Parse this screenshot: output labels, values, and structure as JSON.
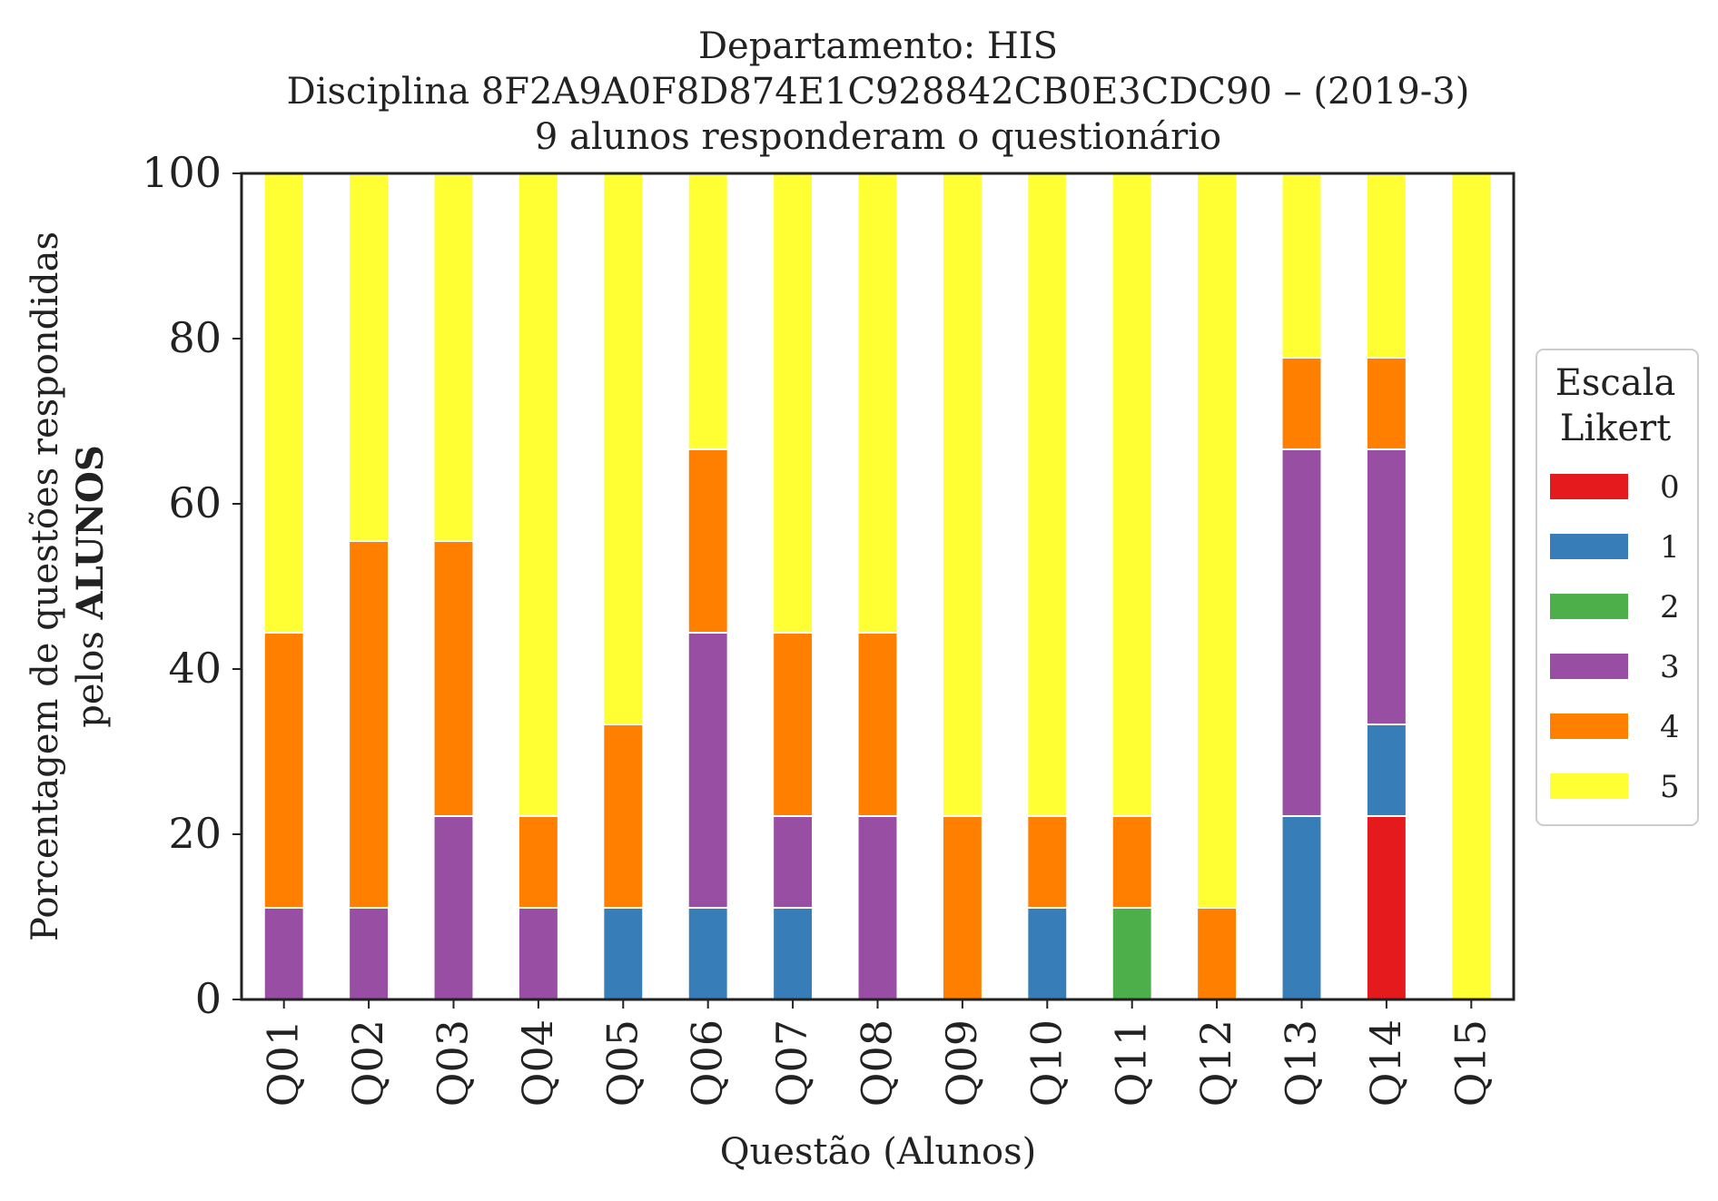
{
  "chart_data": {
    "type": "bar",
    "stacked": true,
    "title_lines": [
      "Departamento: HIS",
      "Disciplina 8F2A9A0F8D874E1C928842CB0E3CDC90 – (2019-3)",
      "9 alunos responderam o questionário"
    ],
    "xlabel": "Questão (Alunos)",
    "ylabel_line1": "Porcentagem de questões respondidas",
    "ylabel_line2_prefix": "pelos ",
    "ylabel_line2_bold": "ALUNOS",
    "ylim": [
      0,
      100
    ],
    "yticks": [
      "0",
      "20",
      "40",
      "60",
      "80",
      "100"
    ],
    "grid": false,
    "legend": {
      "title_lines": [
        "Escala",
        "Likert"
      ],
      "placement": "right-center"
    },
    "categories": [
      "Q01",
      "Q02",
      "Q03",
      "Q04",
      "Q05",
      "Q06",
      "Q07",
      "Q08",
      "Q09",
      "Q10",
      "Q11",
      "Q12",
      "Q13",
      "Q14",
      "Q15"
    ],
    "series": [
      {
        "name": "0",
        "color": "#e41a1c",
        "values": [
          0,
          0,
          0,
          0,
          0,
          0,
          0,
          0,
          0,
          0,
          0,
          0,
          0,
          22.2,
          0
        ]
      },
      {
        "name": "1",
        "color": "#377eb8",
        "values": [
          0,
          0,
          0,
          0,
          11.1,
          11.1,
          11.1,
          0,
          0,
          11.1,
          0,
          0,
          22.2,
          11.1,
          0
        ]
      },
      {
        "name": "2",
        "color": "#4daf4a",
        "values": [
          0,
          0,
          0,
          0,
          0,
          0,
          0,
          0,
          0,
          0,
          11.1,
          0,
          0,
          0,
          0
        ]
      },
      {
        "name": "3",
        "color": "#984ea3",
        "values": [
          11.1,
          11.1,
          22.2,
          11.1,
          0,
          33.3,
          11.1,
          22.2,
          0,
          0,
          0,
          0,
          44.4,
          33.3,
          0
        ]
      },
      {
        "name": "4",
        "color": "#ff7f00",
        "values": [
          33.3,
          44.4,
          33.3,
          11.1,
          22.2,
          22.2,
          22.2,
          22.2,
          22.2,
          11.1,
          11.1,
          11.1,
          11.1,
          11.1,
          0
        ]
      },
      {
        "name": "5",
        "color": "#ffff33",
        "values": [
          55.6,
          44.4,
          44.4,
          77.8,
          66.7,
          33.3,
          55.6,
          55.6,
          77.8,
          77.8,
          77.8,
          88.9,
          22.2,
          22.2,
          100
        ]
      }
    ]
  }
}
